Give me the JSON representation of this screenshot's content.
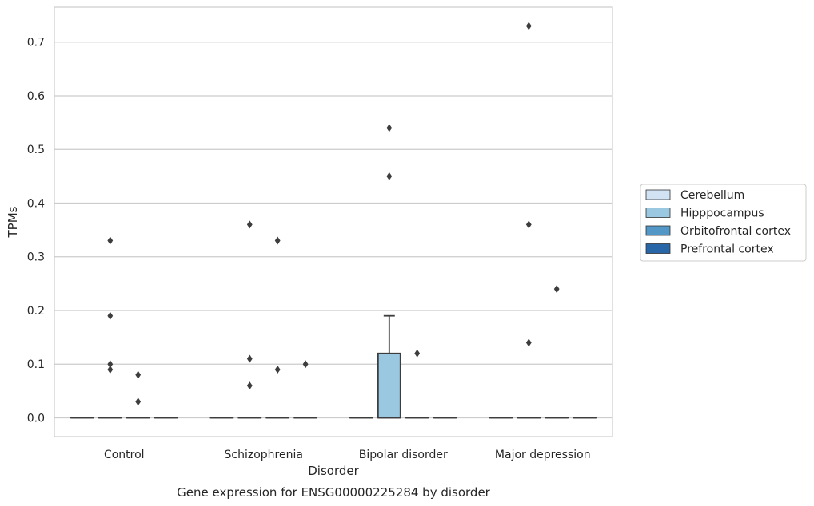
{
  "chart_data": {
    "type": "box",
    "caption": "Gene expression for ENSG00000225284 by disorder",
    "xlabel": "Disorder",
    "ylabel": "TPMs",
    "ylim": [
      -0.035,
      0.765
    ],
    "yticks": [
      0.0,
      0.1,
      0.2,
      0.3,
      0.4,
      0.5,
      0.6,
      0.7
    ],
    "ytick_labels": [
      "0.0",
      "0.1",
      "0.2",
      "0.3",
      "0.4",
      "0.5",
      "0.6",
      "0.7"
    ],
    "categories": [
      "Control",
      "Schizophrenia",
      "Bipolar disorder",
      "Major depression"
    ],
    "grid": "horizontal",
    "legend_position": "right",
    "series": [
      {
        "name": "Cerebellum",
        "color": "#d1e2f2",
        "boxes": [
          {
            "q1": 0,
            "median": 0,
            "q3": 0,
            "whisker_low": 0,
            "whisker_high": 0,
            "outliers": []
          },
          {
            "q1": 0,
            "median": 0,
            "q3": 0,
            "whisker_low": 0,
            "whisker_high": 0,
            "outliers": []
          },
          {
            "q1": 0,
            "median": 0,
            "q3": 0,
            "whisker_low": 0,
            "whisker_high": 0,
            "outliers": []
          },
          {
            "q1": 0,
            "median": 0,
            "q3": 0,
            "whisker_low": 0,
            "whisker_high": 0,
            "outliers": []
          }
        ]
      },
      {
        "name": "Hipppocampus",
        "color": "#9ac8e0",
        "boxes": [
          {
            "q1": 0,
            "median": 0,
            "q3": 0,
            "whisker_low": 0,
            "whisker_high": 0,
            "outliers": [
              0.1,
              0.09,
              0.33,
              0.19
            ]
          },
          {
            "q1": 0,
            "median": 0,
            "q3": 0,
            "whisker_low": 0,
            "whisker_high": 0,
            "outliers": [
              0.11,
              0.06,
              0.36
            ]
          },
          {
            "q1": 0,
            "median": 0,
            "q3": 0.12,
            "whisker_low": 0,
            "whisker_high": 0.19,
            "outliers": [
              0.54,
              0.45
            ]
          },
          {
            "q1": 0,
            "median": 0,
            "q3": 0,
            "whisker_low": 0,
            "whisker_high": 0,
            "outliers": [
              0.73,
              0.36,
              0.14
            ]
          }
        ]
      },
      {
        "name": "Orbitofrontal cortex",
        "color": "#5297c6",
        "boxes": [
          {
            "q1": 0,
            "median": 0,
            "q3": 0,
            "whisker_low": 0,
            "whisker_high": 0,
            "outliers": [
              0.08,
              0.03
            ]
          },
          {
            "q1": 0,
            "median": 0,
            "q3": 0,
            "whisker_low": 0,
            "whisker_high": 0,
            "outliers": [
              0.09,
              0.33
            ]
          },
          {
            "q1": 0,
            "median": 0,
            "q3": 0,
            "whisker_low": 0,
            "whisker_high": 0,
            "outliers": [
              0.12
            ]
          },
          {
            "q1": 0,
            "median": 0,
            "q3": 0,
            "whisker_low": 0,
            "whisker_high": 0,
            "outliers": [
              0.24
            ]
          }
        ]
      },
      {
        "name": "Prefrontal cortex",
        "color": "#2966a8",
        "boxes": [
          {
            "q1": 0,
            "median": 0,
            "q3": 0,
            "whisker_low": 0,
            "whisker_high": 0,
            "outliers": []
          },
          {
            "q1": 0,
            "median": 0,
            "q3": 0,
            "whisker_low": 0,
            "whisker_high": 0,
            "outliers": [
              0.1
            ]
          },
          {
            "q1": 0,
            "median": 0,
            "q3": 0,
            "whisker_low": 0,
            "whisker_high": 0,
            "outliers": []
          },
          {
            "q1": 0,
            "median": 0,
            "q3": 0,
            "whisker_low": 0,
            "whisker_high": 0,
            "outliers": []
          }
        ]
      }
    ],
    "colors": {
      "line": "#3d3d3d",
      "grid": "#cccccc",
      "axes": "#cccccc"
    }
  }
}
